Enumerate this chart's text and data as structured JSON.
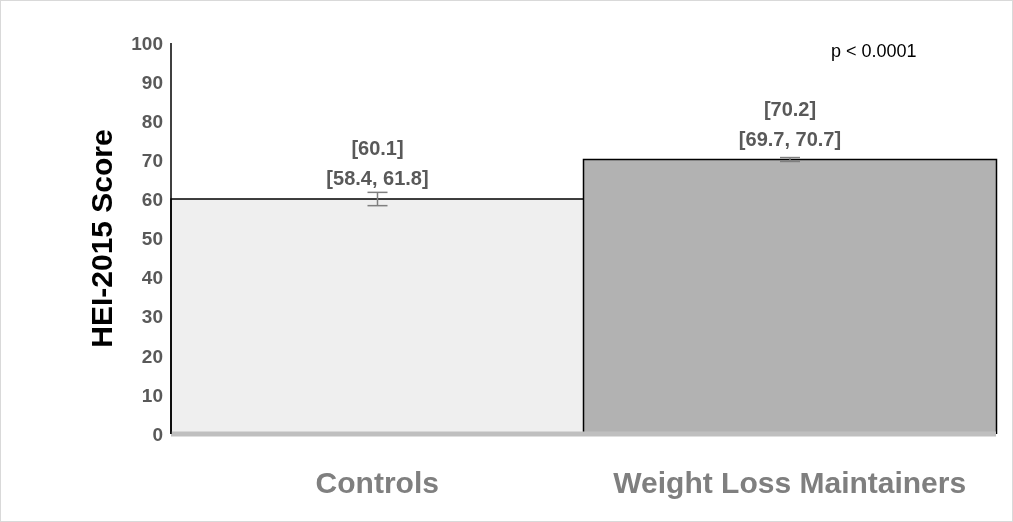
{
  "chart_data": {
    "type": "bar",
    "ylabel": "HEI-2015 Score",
    "categories": [
      "Controls",
      "Weight Loss Maintainers"
    ],
    "values": [
      60.1,
      70.2
    ],
    "colors": [
      "#efefef",
      "#b2b2b2"
    ],
    "errors": [
      [
        58.4,
        61.8
      ],
      [
        69.7,
        70.7
      ]
    ],
    "value_labels": [
      "[60.1]\n[58.4, 61.8]",
      "[70.2]\n[69.7, 70.7]"
    ],
    "ylim": [
      0,
      100
    ],
    "yticks": [
      0,
      10,
      20,
      30,
      40,
      50,
      60,
      70,
      80,
      90,
      100
    ],
    "annotations": [
      "p < 0.0001"
    ]
  }
}
